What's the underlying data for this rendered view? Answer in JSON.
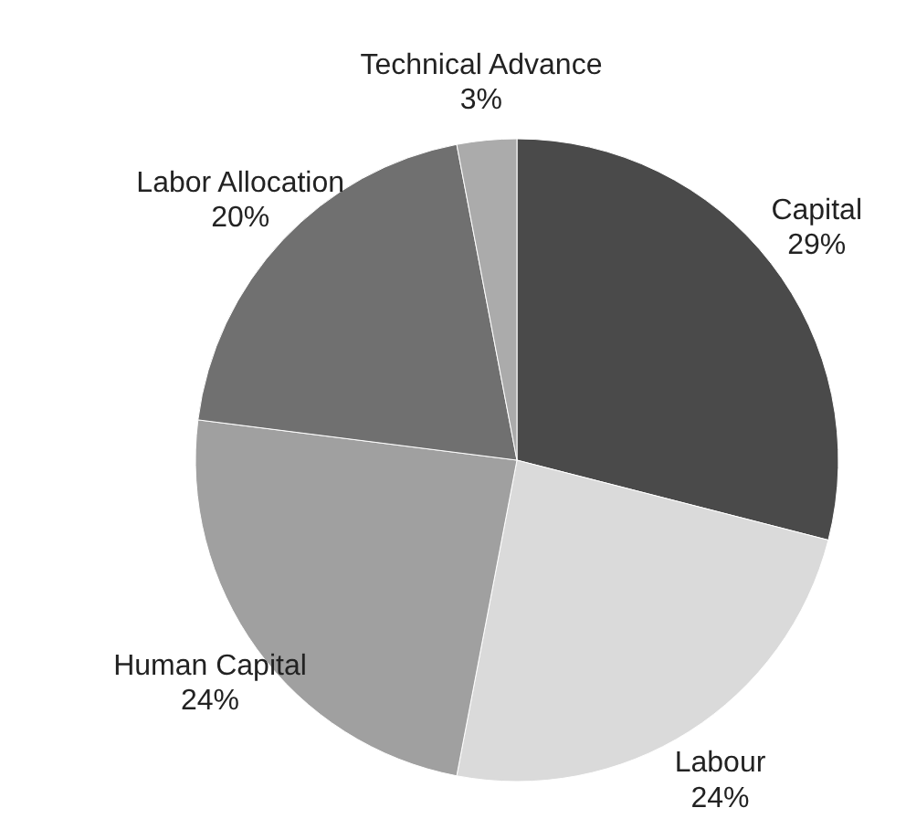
{
  "chart_data": {
    "type": "pie",
    "categories": [
      "Capital",
      "Labour",
      "Human Capital",
      "Labor Allocation",
      "Technical Advance"
    ],
    "values": [
      29,
      24,
      24,
      20,
      3
    ],
    "colors": [
      "#4a4a4a",
      "#dadada",
      "#a0a0a0",
      "#707070",
      "#ababab"
    ],
    "value_labels": [
      "29%",
      "24%",
      "24%",
      "20%",
      "3%"
    ]
  }
}
